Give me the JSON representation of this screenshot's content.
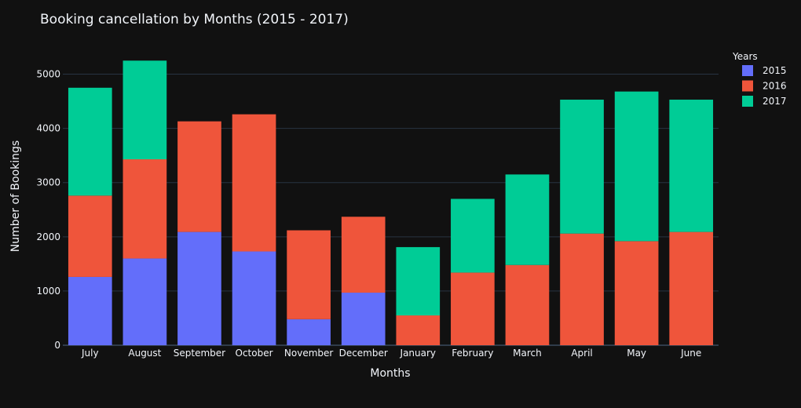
{
  "chart_data": {
    "type": "bar",
    "stacked": true,
    "title": "Booking cancellation by Months (2015 - 2017)",
    "xlabel": "Months",
    "ylabel": "Number of Bookings",
    "ylim": [
      0,
      5500
    ],
    "yticks": [
      0,
      1000,
      2000,
      3000,
      4000,
      5000
    ],
    "grid": true,
    "legend_title": "Years",
    "legend_position": "top-right",
    "categories": [
      "July",
      "August",
      "September",
      "October",
      "November",
      "December",
      "January",
      "February",
      "March",
      "April",
      "May",
      "June"
    ],
    "series": [
      {
        "name": "2015",
        "color": "#636efa",
        "values": [
          1260,
          1600,
          2090,
          1730,
          480,
          970,
          0,
          0,
          0,
          0,
          0,
          0
        ]
      },
      {
        "name": "2016",
        "color": "#ef553b",
        "values": [
          1500,
          1830,
          2040,
          2530,
          1640,
          1400,
          550,
          1340,
          1480,
          2060,
          1920,
          2090
        ]
      },
      {
        "name": "2017",
        "color": "#00cc96",
        "values": [
          1990,
          1820,
          0,
          0,
          0,
          0,
          1260,
          1360,
          1670,
          2470,
          2760,
          2440
        ]
      }
    ]
  }
}
